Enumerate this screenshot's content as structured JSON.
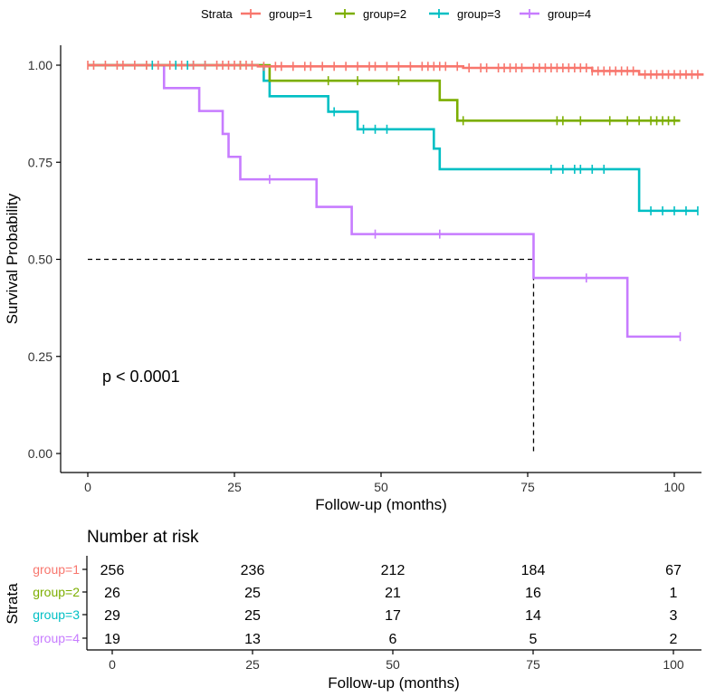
{
  "colors": {
    "group1": "#F8766D",
    "group2": "#7CAE00",
    "group3": "#00BFC4",
    "group4": "#C77CFF"
  },
  "legend": {
    "title": "Strata",
    "items": [
      {
        "label": "group=1",
        "color": "#F8766D"
      },
      {
        "label": "group=2",
        "color": "#7CAE00"
      },
      {
        "label": "group=3",
        "color": "#00BFC4"
      },
      {
        "label": "group=4",
        "color": "#C77CFF"
      }
    ]
  },
  "chart_data": {
    "type": "line",
    "title": "",
    "xlabel": "Follow-up (months)",
    "ylabel": "Survival Probability",
    "xlim": [
      0,
      105
    ],
    "ylim": [
      0,
      1
    ],
    "x_ticks": [
      0,
      25,
      50,
      75,
      100
    ],
    "y_ticks": [
      0.0,
      0.25,
      0.5,
      0.75,
      1.0
    ],
    "y_tick_labels": [
      "0.00",
      "0.25",
      "0.50",
      "0.75",
      "1.00"
    ],
    "annotation": "p < 0.0001",
    "median_line": {
      "y": 0.5,
      "x": 76
    },
    "series": [
      {
        "name": "group=1",
        "color": "#F8766D",
        "steps": [
          [
            0,
            1.0
          ],
          [
            29,
            0.997
          ],
          [
            64,
            0.993
          ],
          [
            86,
            0.985
          ],
          [
            94,
            0.976
          ],
          [
            105,
            0.976
          ]
        ],
        "censors": [
          0,
          1,
          3,
          5,
          6,
          8,
          10,
          12,
          14,
          16,
          18,
          20,
          22,
          23,
          24,
          25,
          26,
          27,
          28,
          30,
          32,
          33,
          35,
          37,
          38,
          40,
          42,
          44,
          46,
          48,
          49,
          51,
          53,
          55,
          57,
          58,
          59,
          60,
          61,
          63,
          65,
          67,
          68,
          70,
          71,
          72,
          73,
          74,
          76,
          77,
          78,
          79,
          80,
          81,
          82,
          83,
          84,
          85,
          86,
          87,
          88,
          89,
          90,
          91,
          92,
          93,
          95,
          96,
          97,
          98,
          99,
          100,
          101,
          102,
          103,
          104
        ]
      },
      {
        "name": "group=2",
        "color": "#7CAE00",
        "steps": [
          [
            0,
            1.0
          ],
          [
            31,
            0.96
          ],
          [
            60,
            0.91
          ],
          [
            63,
            0.857
          ],
          [
            101,
            0.857
          ]
        ],
        "censors": [
          10,
          26,
          41,
          46,
          53,
          64,
          80,
          81,
          84,
          89,
          92,
          94,
          96,
          97,
          98,
          99,
          100
        ]
      },
      {
        "name": "group=3",
        "color": "#00BFC4",
        "steps": [
          [
            0,
            1.0
          ],
          [
            30,
            0.96
          ],
          [
            31,
            0.92
          ],
          [
            41,
            0.88
          ],
          [
            46,
            0.835
          ],
          [
            59,
            0.785
          ],
          [
            60,
            0.732
          ],
          [
            94,
            0.625
          ],
          [
            104,
            0.625
          ]
        ],
        "censors": [
          11,
          15,
          17,
          18,
          20,
          42,
          47,
          49,
          51,
          79,
          81,
          83,
          84,
          86,
          88,
          96,
          98,
          100,
          102,
          104
        ]
      },
      {
        "name": "group=4",
        "color": "#C77CFF",
        "steps": [
          [
            0,
            1.0
          ],
          [
            13,
            0.941
          ],
          [
            19,
            0.882
          ],
          [
            23,
            0.823
          ],
          [
            24,
            0.764
          ],
          [
            26,
            0.706
          ],
          [
            39,
            0.635
          ],
          [
            45,
            0.565
          ],
          [
            76,
            0.452
          ],
          [
            92,
            0.301
          ],
          [
            101,
            0.301
          ]
        ],
        "censors": [
          12,
          31,
          49,
          60,
          85,
          101
        ]
      }
    ]
  },
  "risk_table": {
    "title": "Number at risk",
    "ylabel": "Strata",
    "xlabel": "Follow-up (months)",
    "x_ticks": [
      0,
      25,
      50,
      75,
      100
    ],
    "rows": [
      {
        "label": "group=1",
        "color": "#F8766D",
        "values": [
          "256",
          "236",
          "212",
          "184",
          "67"
        ]
      },
      {
        "label": "group=2",
        "color": "#7CAE00",
        "values": [
          "26",
          "25",
          "21",
          "16",
          "1"
        ]
      },
      {
        "label": "group=3",
        "color": "#00BFC4",
        "values": [
          "29",
          "25",
          "17",
          "14",
          "3"
        ]
      },
      {
        "label": "group=4",
        "color": "#C77CFF",
        "values": [
          "19",
          "13",
          "6",
          "5",
          "2"
        ]
      }
    ]
  }
}
